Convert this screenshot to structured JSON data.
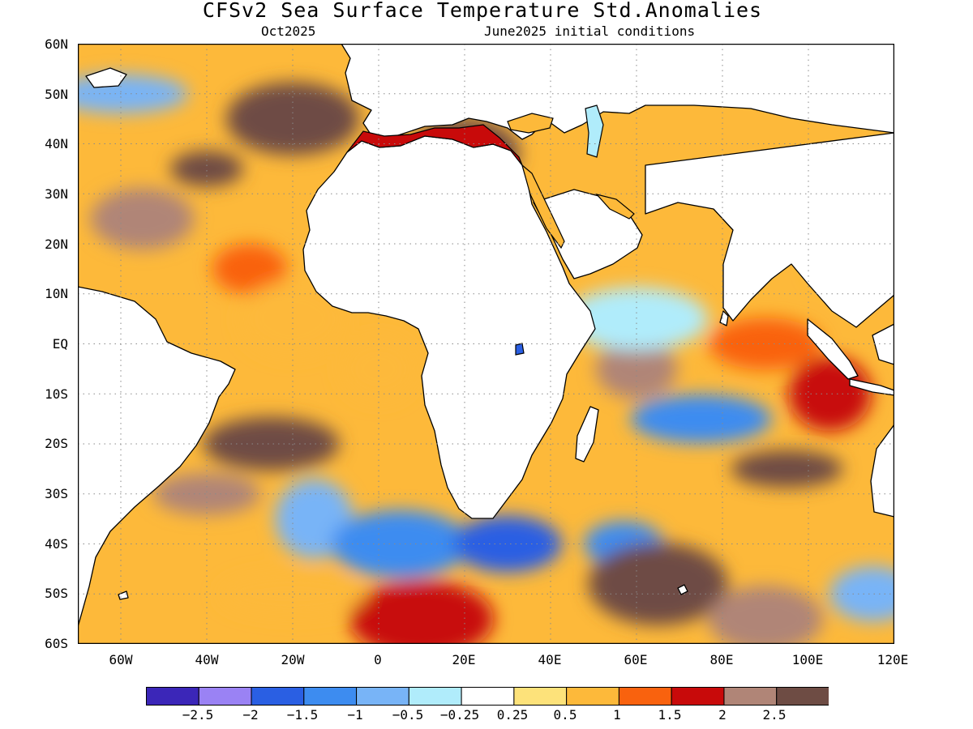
{
  "title": "CFSv2 Sea Surface Temperature Std.Anomalies",
  "subtitle_left": "Oct2025",
  "subtitle_right": "June2025 initial conditions",
  "lat_labels": [
    "60N",
    "50N",
    "40N",
    "30N",
    "20N",
    "10N",
    "EQ",
    "10S",
    "20S",
    "30S",
    "40S",
    "50S",
    "60S"
  ],
  "lon_labels": [
    "60W",
    "40W",
    "20W",
    "0",
    "20E",
    "40E",
    "60E",
    "80E",
    "100E",
    "120E"
  ],
  "map": {
    "lon_range": [
      -70,
      120
    ],
    "lat_range": [
      -60,
      60
    ],
    "grid": "dotted",
    "land_color": "#ffffff",
    "coast_color": "#000000"
  },
  "colorbar": {
    "colors": [
      "#3b26b8",
      "#9a82f4",
      "#2a5fe3",
      "#3d8cf0",
      "#78b4f7",
      "#b0ecfb",
      "#ffffff",
      "#fde27a",
      "#fdb93a",
      "#f9620e",
      "#c80a0a",
      "#b08577",
      "#6e4c44"
    ],
    "tick_labels": [
      "−2.5",
      "−2",
      "−1.5",
      "−1",
      "−0.5",
      "−0.25",
      "0.25",
      "0.5",
      "1",
      "1.5",
      "2",
      "2.5"
    ]
  },
  "anomaly_regions": [
    {
      "lon": -40,
      "lat": 35,
      "value": 2.5
    },
    {
      "lon": -20,
      "lat": 45,
      "value": 2.5
    },
    {
      "lon": -55,
      "lat": 25,
      "value": 2.0
    },
    {
      "lon": -30,
      "lat": 15,
      "value": 1.0
    },
    {
      "lon": -60,
      "lat": 50,
      "value": -1.0
    },
    {
      "lon": -20,
      "lat": 5,
      "value": 0.5
    },
    {
      "lon": 0,
      "lat": -5,
      "value": 0.5
    },
    {
      "lon": -25,
      "lat": -20,
      "value": 2.5
    },
    {
      "lon": -40,
      "lat": -30,
      "value": 2.0
    },
    {
      "lon": -15,
      "lat": -35,
      "value": -1.0
    },
    {
      "lon": 5,
      "lat": -40,
      "value": -1.5
    },
    {
      "lon": 30,
      "lat": -40,
      "value": -2.0
    },
    {
      "lon": 57,
      "lat": -40,
      "value": -1.5
    },
    {
      "lon": 65,
      "lat": -48,
      "value": 2.5
    },
    {
      "lon": 20,
      "lat": 38,
      "value": 2.5
    },
    {
      "lon": 60,
      "lat": -5,
      "value": 2.0
    },
    {
      "lon": 75,
      "lat": -15,
      "value": -1.5
    },
    {
      "lon": 95,
      "lat": -25,
      "value": 2.5
    },
    {
      "lon": 105,
      "lat": -10,
      "value": 1.5
    },
    {
      "lon": 60,
      "lat": 5,
      "value": -0.5
    },
    {
      "lon": 90,
      "lat": 0,
      "value": 1.0
    },
    {
      "lon": 110,
      "lat": 15,
      "value": 0.5
    },
    {
      "lon": 10,
      "lat": -55,
      "value": 1.5
    },
    {
      "lon": 90,
      "lat": -55,
      "value": 2.0
    },
    {
      "lon": 115,
      "lat": -50,
      "value": -1.0
    },
    {
      "lon": -20,
      "lat": -50,
      "value": 0.5
    }
  ]
}
